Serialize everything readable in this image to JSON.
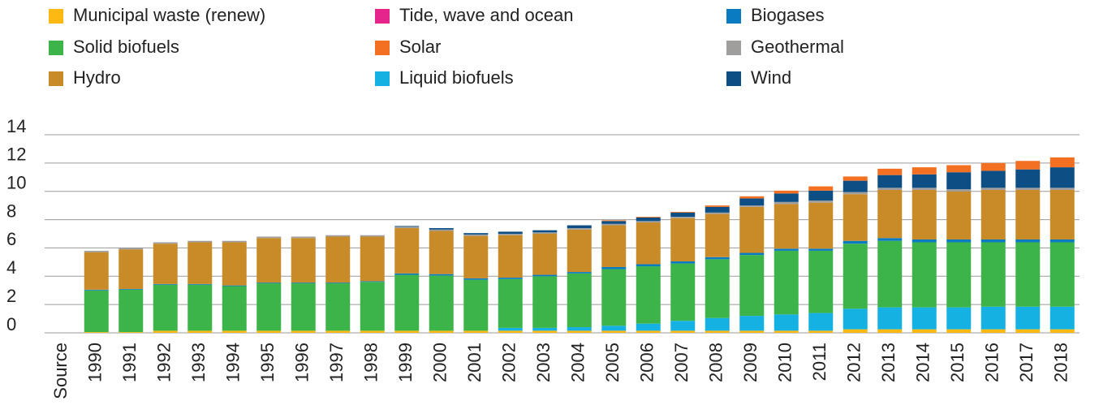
{
  "chart_data": {
    "type": "stacked_bar",
    "categories": [
      "Source",
      "1990",
      "1991",
      "1992",
      "1993",
      "1994",
      "1995",
      "1996",
      "1997",
      "1998",
      "1999",
      "2000",
      "2001",
      "2002",
      "2003",
      "2004",
      "2005",
      "2006",
      "2007",
      "2008",
      "2009",
      "2010",
      "2011",
      "2012",
      "2013",
      "2014",
      "2015",
      "2016",
      "2017",
      "2018"
    ],
    "series": [
      {
        "name": "Municipal waste (renew)",
        "color": "#fdb913",
        "values": [
          null,
          0.05,
          0.05,
          0.15,
          0.15,
          0.15,
          0.15,
          0.15,
          0.15,
          0.15,
          0.15,
          0.15,
          0.15,
          0.15,
          0.15,
          0.15,
          0.15,
          0.15,
          0.15,
          0.15,
          0.15,
          0.15,
          0.15,
          0.25,
          0.25,
          0.25,
          0.25,
          0.25,
          0.25,
          0.25
        ]
      },
      {
        "name": "Liquid biofuels",
        "color": "#16b1e3",
        "values": [
          null,
          0,
          0,
          0,
          0,
          0,
          0,
          0,
          0,
          0,
          0,
          0,
          0,
          0.2,
          0.2,
          0.25,
          0.35,
          0.5,
          0.7,
          0.9,
          1.05,
          1.15,
          1.25,
          1.45,
          1.55,
          1.55,
          1.55,
          1.6,
          1.6,
          1.6
        ]
      },
      {
        "name": "Solid biofuels",
        "color": "#3cb44a",
        "values": [
          null,
          2.95,
          3.0,
          3.25,
          3.25,
          3.15,
          3.35,
          3.35,
          3.35,
          3.45,
          3.95,
          3.9,
          3.6,
          3.45,
          3.65,
          3.8,
          4.0,
          4.05,
          4.05,
          4.15,
          4.3,
          4.5,
          4.4,
          4.6,
          4.7,
          4.6,
          4.6,
          4.55,
          4.55,
          4.55
        ]
      },
      {
        "name": "Biogases",
        "color": "#0a7bc1",
        "values": [
          null,
          0.05,
          0.05,
          0.05,
          0.05,
          0.05,
          0.05,
          0.05,
          0.05,
          0.05,
          0.1,
          0.1,
          0.1,
          0.1,
          0.1,
          0.1,
          0.15,
          0.15,
          0.15,
          0.15,
          0.15,
          0.15,
          0.15,
          0.2,
          0.2,
          0.2,
          0.2,
          0.2,
          0.2,
          0.2
        ]
      },
      {
        "name": "Hydro",
        "color": "#c98b27",
        "values": [
          null,
          2.65,
          2.8,
          2.85,
          2.95,
          3.05,
          3.15,
          3.15,
          3.25,
          3.15,
          3.2,
          3.05,
          3.0,
          3.0,
          2.9,
          3.0,
          2.95,
          2.95,
          3.05,
          3.05,
          3.25,
          3.15,
          3.25,
          3.3,
          3.4,
          3.5,
          3.4,
          3.5,
          3.5,
          3.5
        ]
      },
      {
        "name": "Geothermal",
        "color": "#a09e9c",
        "values": [
          null,
          0.1,
          0.1,
          0.1,
          0.1,
          0.1,
          0.1,
          0.1,
          0.1,
          0.1,
          0.1,
          0.1,
          0.1,
          0.1,
          0.1,
          0.1,
          0.1,
          0.1,
          0.1,
          0.1,
          0.1,
          0.15,
          0.15,
          0.15,
          0.15,
          0.15,
          0.15,
          0.15,
          0.15,
          0.15
        ]
      },
      {
        "name": "Wind",
        "color": "#0d4f84",
        "values": [
          null,
          0,
          0,
          0,
          0,
          0,
          0,
          0,
          0,
          0,
          0.05,
          0.1,
          0.1,
          0.15,
          0.15,
          0.2,
          0.2,
          0.25,
          0.3,
          0.4,
          0.5,
          0.6,
          0.7,
          0.8,
          0.9,
          0.95,
          1.2,
          1.2,
          1.3,
          1.45
        ]
      },
      {
        "name": "Solar",
        "color": "#f36f21",
        "values": [
          null,
          0,
          0,
          0,
          0,
          0,
          0,
          0,
          0,
          0,
          0,
          0,
          0,
          0,
          0,
          0,
          0.05,
          0.05,
          0.05,
          0.1,
          0.15,
          0.2,
          0.3,
          0.3,
          0.45,
          0.5,
          0.5,
          0.55,
          0.6,
          0.7
        ]
      },
      {
        "name": "Tide, wave and ocean",
        "color": "#e5258c",
        "values": [
          null,
          0,
          0,
          0,
          0,
          0,
          0,
          0,
          0,
          0,
          0,
          0,
          0,
          0,
          0,
          0,
          0,
          0,
          0,
          0,
          0,
          0,
          0,
          0,
          0,
          0,
          0,
          0,
          0,
          0
        ]
      }
    ],
    "ylim": [
      0,
      14
    ],
    "yticks": [
      0,
      2,
      4,
      6,
      8,
      10,
      12,
      14
    ],
    "grid": true,
    "legend": "top"
  }
}
